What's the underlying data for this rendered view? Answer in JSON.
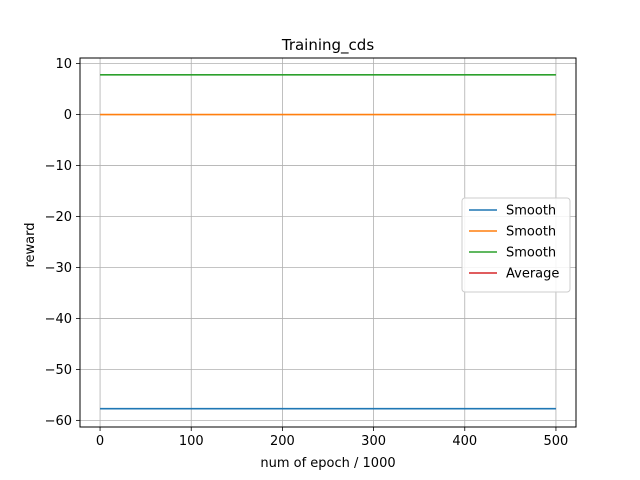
{
  "chart_data": {
    "type": "line",
    "title": "Training_cds",
    "xlabel": "num of epoch / 1000",
    "ylabel": "reward",
    "xlim": [
      -22,
      522
    ],
    "ylim": [
      -61.3,
      11.1
    ],
    "x_ticks": [
      0,
      100,
      200,
      300,
      400,
      500
    ],
    "x_tick_labels": [
      "0",
      "100",
      "200",
      "300",
      "400",
      "500"
    ],
    "y_ticks": [
      10,
      0,
      -10,
      -20,
      -30,
      -40,
      -50,
      -60
    ],
    "y_tick_labels": [
      "10",
      "0",
      "−10",
      "−20",
      "−30",
      "−40",
      "−50",
      "−60"
    ],
    "grid": true,
    "legend_position": "center-right",
    "series": [
      {
        "name": "Smooth",
        "color": "#1f77b4",
        "x": [
          0,
          500
        ],
        "values": [
          -57.7,
          -57.7
        ]
      },
      {
        "name": "Smooth",
        "color": "#ff7f0e",
        "x": [
          0,
          500
        ],
        "values": [
          0,
          0
        ]
      },
      {
        "name": "Smooth",
        "color": "#2ca02c",
        "x": [
          0,
          500
        ],
        "values": [
          7.8,
          7.8
        ]
      },
      {
        "name": "Average",
        "color": "#d62728",
        "x": [],
        "values": []
      }
    ]
  }
}
